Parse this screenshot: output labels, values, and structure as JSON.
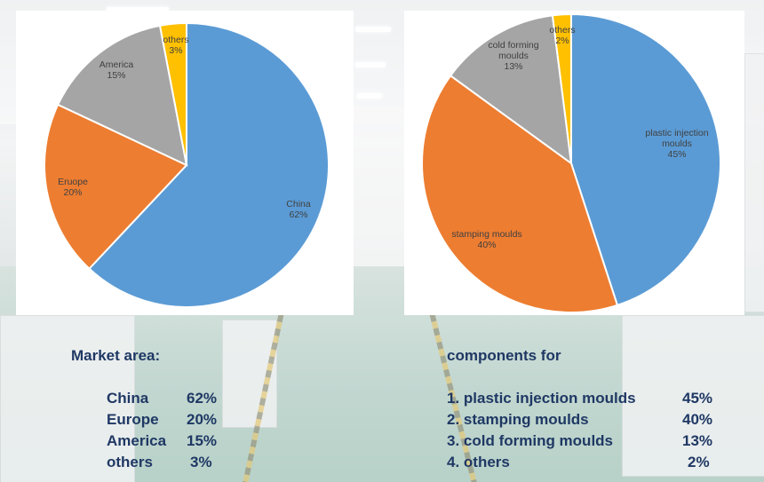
{
  "chart_data": [
    {
      "type": "pie",
      "slices": [
        {
          "label": "China",
          "percent_label": "62%",
          "value": 62,
          "color": "#5b9bd5"
        },
        {
          "label": "Eruope",
          "percent_label": "20%",
          "value": 20,
          "color": "#ed7d31"
        },
        {
          "label": "America",
          "percent_label": "15%",
          "value": 15,
          "color": "#a5a5a5"
        },
        {
          "label": "others",
          "percent_label": "3%",
          "value": 3,
          "color": "#ffc000"
        }
      ]
    },
    {
      "type": "pie",
      "slices": [
        {
          "label": "plastic injection moulds",
          "percent_label": "45%",
          "value": 45,
          "color": "#5b9bd5"
        },
        {
          "label": "stamping moulds",
          "percent_label": "40%",
          "value": 40,
          "color": "#ed7d31"
        },
        {
          "label": "cold forming moulds",
          "percent_label": "13%",
          "value": 13,
          "color": "#a5a5a5"
        },
        {
          "label": "others",
          "percent_label": "2%",
          "value": 2,
          "color": "#ffc000"
        }
      ]
    }
  ],
  "market_list": {
    "title": "Market area:",
    "rows": [
      {
        "name": "China",
        "value": "62%"
      },
      {
        "name": "Europe",
        "value": "20%"
      },
      {
        "name": "America",
        "value": "15%"
      },
      {
        "name": "others",
        "value": "3%"
      }
    ]
  },
  "components_list": {
    "title": "components for",
    "rows": [
      {
        "name": "1. plastic injection moulds",
        "value": "45%"
      },
      {
        "name": "2. stamping moulds",
        "value": "40%"
      },
      {
        "name": "3. cold forming moulds",
        "value": "13%"
      },
      {
        "name": "4. others",
        "value": "2%"
      }
    ]
  }
}
